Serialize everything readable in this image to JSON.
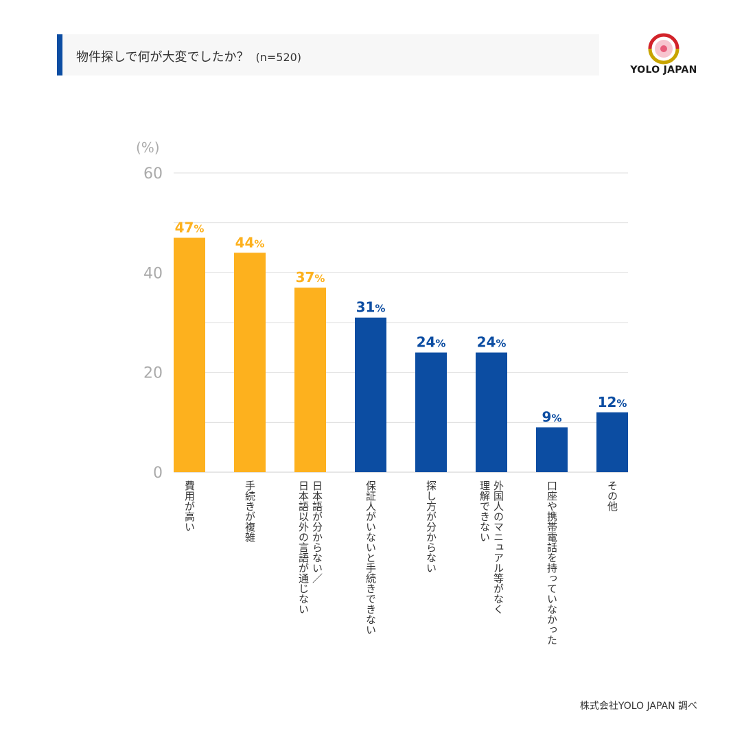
{
  "header": {
    "title": "物件探しで何が大変でしたか？",
    "sample": "(n=520)"
  },
  "logo": {
    "text": "YOLO JAPAN"
  },
  "source": "株式会社YOLO JAPAN 調べ",
  "colors": {
    "highlight": "#fdb11e",
    "primary": "#0c4da2",
    "accent_bar": "#0c4da2"
  },
  "chart_data": {
    "type": "bar",
    "ylabel": "(%)",
    "ylim": [
      0,
      60
    ],
    "yticks": [
      0,
      20,
      40,
      60
    ],
    "grid": true,
    "categories": [
      "費用が高い",
      "手続きが複雑",
      "日本語が分からない／日本語以外の言語が通じない",
      "保証人がいないと手続きできない",
      "探し方が分からない",
      "外国人のマニュアル等がなく理解できない",
      "口座や携帯電話を持っていなかった",
      "その他"
    ],
    "category_lines": [
      [
        "費用が高い"
      ],
      [
        "手続きが複雑"
      ],
      [
        "日本語が分からない／",
        "日本語以外の言語が通じない"
      ],
      [
        "保証人がいないと手続きできない"
      ],
      [
        "探し方が分からない"
      ],
      [
        "外国人のマニュアル等がなく",
        "理解できない"
      ],
      [
        "口座や携帯電話を持っていなかった"
      ],
      [
        "その他"
      ]
    ],
    "values": [
      47,
      44,
      37,
      31,
      24,
      24,
      9,
      12
    ],
    "value_labels": [
      "47",
      "44",
      "37",
      "31",
      "24",
      "24",
      "9",
      "12"
    ],
    "unit": "%",
    "bar_colors": [
      "#fdb11e",
      "#fdb11e",
      "#fdb11e",
      "#0c4da2",
      "#0c4da2",
      "#0c4da2",
      "#0c4da2",
      "#0c4da2"
    ]
  }
}
